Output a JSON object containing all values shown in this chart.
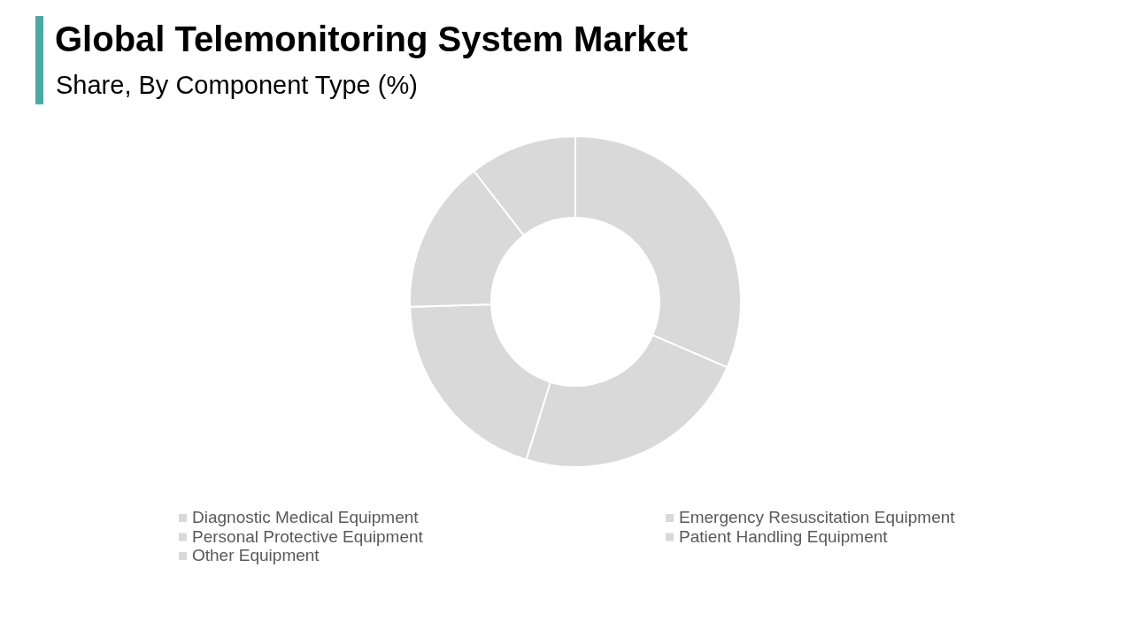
{
  "chart_data": {
    "type": "donut",
    "title": "Global Telemonitoring System Market",
    "subtitle": "Share, By Component Type (%)",
    "categories": [
      "Diagnostic Medical Equipment",
      "Emergency Resuscitation Equipment",
      "Personal Protective Equipment",
      "Patient Handling Equipment",
      "Other Equipment"
    ],
    "values": [
      31.5,
      23.3,
      19.7,
      15,
      10.5
    ],
    "colors": [
      "#d9d9d9",
      "#d9d9d9",
      "#d9d9d9",
      "#d9d9d9",
      "#d9d9d9"
    ],
    "legend": "bottom"
  }
}
